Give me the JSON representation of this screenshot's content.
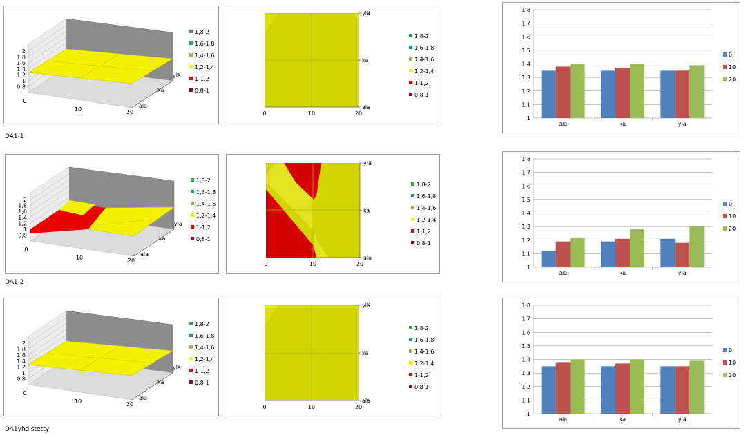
{
  "legend_ranges": [
    {
      "label": "1,8-2",
      "color": "#3aa14a"
    },
    {
      "label": "1,6-1,8",
      "color": "#17a285"
    },
    {
      "label": "1,4-1,6",
      "color": "#a9b34b"
    },
    {
      "label": "1,2-1,4",
      "color": "#f2f200"
    },
    {
      "label": "1-1,2",
      "color": "#e60000"
    },
    {
      "label": "0,8-1",
      "color": "#8b0f23"
    }
  ],
  "surface_axes": {
    "x_ticks": [
      "0",
      "10",
      "20"
    ],
    "z_ticks": [
      "2",
      "1,8",
      "1,6",
      "1,4",
      "1,2",
      "1",
      "0,8"
    ],
    "depth_ticks": [
      "ala",
      "ka",
      "ylä"
    ]
  },
  "contour_axes": {
    "x_ticks": [
      "0",
      "10",
      "20"
    ],
    "y_ticks": [
      "ala",
      "ka",
      "ylä"
    ]
  },
  "bar_axes": {
    "y_ticks": [
      "1",
      "1,1",
      "1,2",
      "1,3",
      "1,4",
      "1,5",
      "1,6",
      "1,7",
      "1,8"
    ],
    "ylim": [
      1,
      1.8
    ]
  },
  "rows": [
    {
      "label": "DA1-1",
      "chart_data": {
        "type": "bar",
        "categories": [
          "ala",
          "ka",
          "ylä"
        ],
        "series": [
          {
            "name": "0",
            "color": "#4f81bd",
            "values": [
              1.35,
              1.35,
              1.35
            ]
          },
          {
            "name": "10",
            "color": "#c0504d",
            "values": [
              1.38,
              1.37,
              1.35
            ]
          },
          {
            "name": "20",
            "color": "#9bbb59",
            "values": [
              1.4,
              1.4,
              1.39
            ]
          }
        ],
        "ylim": [
          1,
          1.8
        ]
      }
    },
    {
      "label": "DA1-2",
      "chart_data": {
        "type": "bar",
        "categories": [
          "ala",
          "ka",
          "ylä"
        ],
        "series": [
          {
            "name": "0",
            "color": "#4f81bd",
            "values": [
              1.12,
              1.19,
              1.21
            ]
          },
          {
            "name": "10",
            "color": "#c0504d",
            "values": [
              1.19,
              1.21,
              1.18
            ]
          },
          {
            "name": "20",
            "color": "#9bbb59",
            "values": [
              1.22,
              1.28,
              1.3
            ]
          }
        ],
        "ylim": [
          1,
          1.8
        ]
      }
    },
    {
      "label": "DA1yhdistetty",
      "chart_data": {
        "type": "bar",
        "categories": [
          "ala",
          "ka",
          "ylä"
        ],
        "series": [
          {
            "name": "0",
            "color": "#4f81bd",
            "values": [
              1.35,
              1.35,
              1.35
            ]
          },
          {
            "name": "10",
            "color": "#c0504d",
            "values": [
              1.38,
              1.37,
              1.35
            ]
          },
          {
            "name": "20",
            "color": "#9bbb59",
            "values": [
              1.4,
              1.4,
              1.39
            ]
          }
        ],
        "ylim": [
          1,
          1.8
        ]
      }
    }
  ]
}
